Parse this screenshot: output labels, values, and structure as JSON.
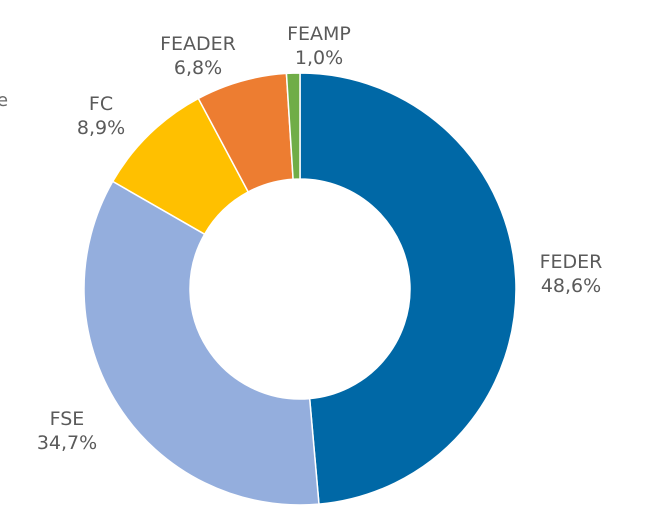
{
  "edge_glyph": "e",
  "chart_data": {
    "type": "pie",
    "variant": "donut",
    "title": "",
    "categories": [
      "FEDER",
      "FSE",
      "FC",
      "FEADER",
      "FEAMP"
    ],
    "values": [
      48.6,
      34.7,
      8.9,
      6.8,
      1.0
    ],
    "value_labels": [
      "48,6%",
      "34,7%",
      "8,9%",
      "6,8%",
      "1,0%"
    ],
    "colors": [
      "#0068A6",
      "#94AEDD",
      "#FFC000",
      "#ED7D31",
      "#70AD47"
    ],
    "start_angle_deg": 0,
    "direction": "clockwise",
    "legend": "none",
    "data_labels": "outside"
  }
}
